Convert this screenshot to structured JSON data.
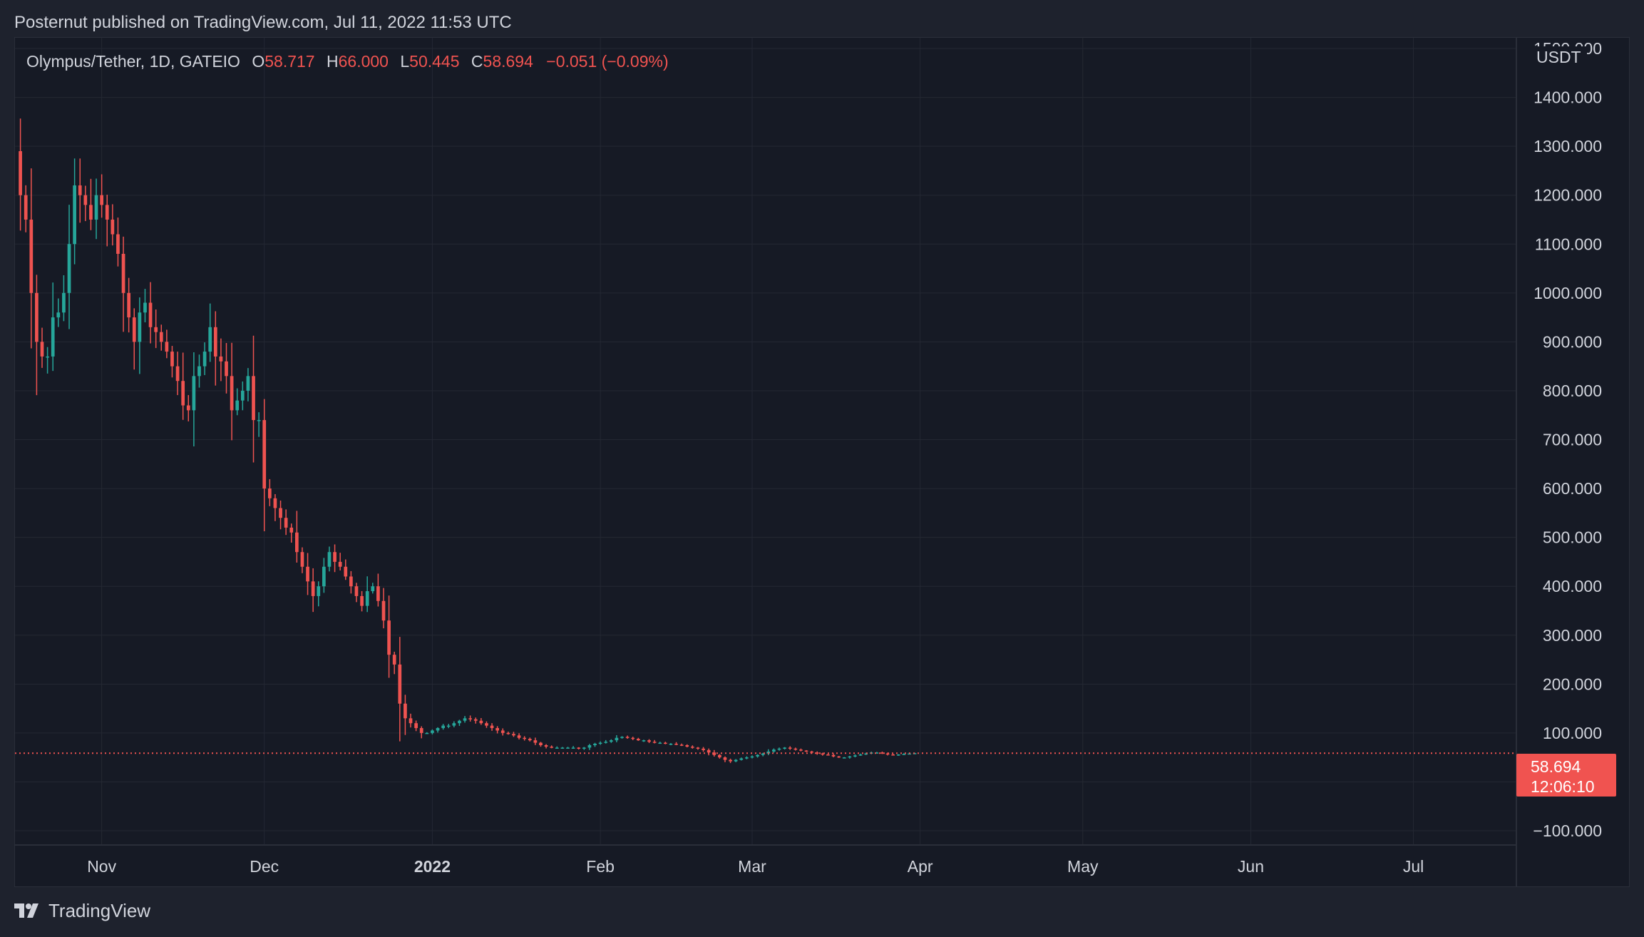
{
  "header": {
    "published_text": "Posternut published on TradingView.com, Jul 11, 2022 11:53 UTC"
  },
  "legend": {
    "symbol": "Olympus/Tether, 1D, GATEIO",
    "open_label": "O",
    "open": "58.717",
    "high_label": "H",
    "high": "66.000",
    "low_label": "L",
    "low": "50.445",
    "close_label": "C",
    "close": "58.694",
    "change": "−0.051 (−0.09%)"
  },
  "price_axis": {
    "currency": "USDT",
    "last_price": "58.694",
    "countdown": "12:06:10"
  },
  "brand": {
    "name": "TradingView",
    "icon": "tradingview-logo-icon"
  },
  "colors": {
    "background": "#161a25",
    "up": "#26a69a",
    "down": "#ef5350",
    "grid": "#242833",
    "text": "#d1d4dc"
  },
  "chart_data": {
    "type": "candlestick",
    "title": "Olympus/Tether, 1D, GATEIO",
    "ylabel": "USDT",
    "ylim": [
      -100,
      1500
    ],
    "y_ticks": [
      "1500.000",
      "1400.000",
      "1300.000",
      "1200.000",
      "1100.000",
      "1000.000",
      "900.000",
      "800.000",
      "700.000",
      "600.000",
      "500.000",
      "400.000",
      "300.000",
      "200.000",
      "100.000",
      "0.000",
      "−100.000"
    ],
    "x_range": [
      "2021-10-16",
      "2022-07-20"
    ],
    "x_ticks": [
      {
        "date": "2021-11-01",
        "label": "Nov"
      },
      {
        "date": "2021-12-01",
        "label": "Dec"
      },
      {
        "date": "2022-01-01",
        "label": "2022"
      },
      {
        "date": "2022-02-01",
        "label": "Feb"
      },
      {
        "date": "2022-03-01",
        "label": "Mar"
      },
      {
        "date": "2022-04-01",
        "label": "Apr"
      },
      {
        "date": "2022-05-01",
        "label": "May"
      },
      {
        "date": "2022-06-01",
        "label": "Jun"
      },
      {
        "date": "2022-07-01",
        "label": "Jul"
      }
    ],
    "start_date": "2021-10-17",
    "last_price": 58.694,
    "grid": true,
    "closes": [
      1200,
      1150,
      1000,
      900,
      870,
      870,
      950,
      960,
      1000,
      1100,
      1220,
      1200,
      1180,
      1150,
      1200,
      1180,
      1150,
      1120,
      1080,
      1000,
      950,
      900,
      960,
      980,
      930,
      920,
      900,
      880,
      850,
      820,
      770,
      760,
      830,
      850,
      880,
      930,
      870,
      860,
      830,
      760,
      780,
      800,
      830,
      740,
      740,
      600,
      580,
      560,
      540,
      520,
      510,
      470,
      440,
      410,
      380,
      400,
      440,
      470,
      450,
      440,
      420,
      400,
      380,
      360,
      390,
      400,
      370,
      330,
      260,
      240,
      160,
      130,
      120,
      110,
      100,
      100,
      105,
      110,
      115,
      115,
      120,
      125,
      130,
      128,
      125,
      120,
      115,
      110,
      105,
      100,
      98,
      95,
      90,
      88,
      85,
      80,
      75,
      72,
      70,
      70,
      70,
      70,
      70,
      68,
      70,
      75,
      78,
      80,
      82,
      85,
      90,
      92,
      90,
      88,
      85,
      85,
      82,
      80,
      80,
      78,
      78,
      76,
      75,
      72,
      70,
      68,
      65,
      60,
      55,
      50,
      45,
      42,
      45,
      48,
      50,
      52,
      55,
      58,
      62,
      66,
      68,
      70,
      68,
      66,
      64,
      62,
      60,
      58,
      56,
      55,
      52,
      50,
      50,
      52,
      54,
      56,
      58,
      60,
      60,
      58,
      56,
      55,
      56,
      57,
      58,
      58.69
    ]
  }
}
